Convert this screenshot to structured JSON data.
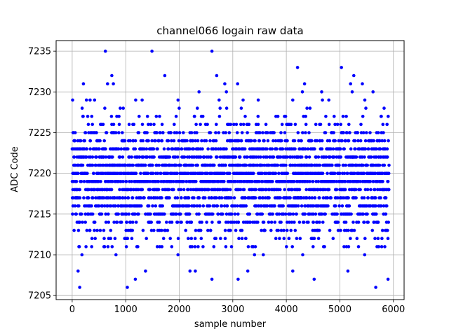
{
  "chart_data": {
    "type": "scatter",
    "title": "channel066 logain raw data",
    "xlabel": "sample number",
    "ylabel": "ADC Code",
    "xlim": [
      -300,
      6200
    ],
    "ylim": [
      7204.5,
      7236.3
    ],
    "x_ticks": [
      0,
      1000,
      2000,
      3000,
      4000,
      5000,
      6000
    ],
    "y_ticks": [
      7205,
      7210,
      7215,
      7220,
      7225,
      7230,
      7235
    ],
    "grid": true,
    "marker_color": "#0000ff",
    "n_samples": 5920,
    "value_range": [
      7206,
      7235
    ],
    "core_band": [
      7210,
      7229
    ],
    "outliers": [
      {
        "x": 140,
        "y": 7206
      },
      {
        "x": 1030,
        "y": 7206
      },
      {
        "x": 5670,
        "y": 7206
      },
      {
        "x": 2610,
        "y": 7207
      },
      {
        "x": 1180,
        "y": 7207
      },
      {
        "x": 3100,
        "y": 7207
      },
      {
        "x": 4520,
        "y": 7207
      },
      {
        "x": 5900,
        "y": 7207
      },
      {
        "x": 110,
        "y": 7208
      },
      {
        "x": 1370,
        "y": 7208
      },
      {
        "x": 2200,
        "y": 7208
      },
      {
        "x": 2300,
        "y": 7208
      },
      {
        "x": 3280,
        "y": 7208
      },
      {
        "x": 4120,
        "y": 7208
      },
      {
        "x": 5150,
        "y": 7208
      },
      {
        "x": 620,
        "y": 7235
      },
      {
        "x": 1490,
        "y": 7235
      },
      {
        "x": 2610,
        "y": 7235
      },
      {
        "x": 4210,
        "y": 7233
      },
      {
        "x": 5030,
        "y": 7233
      },
      {
        "x": 740,
        "y": 7232
      },
      {
        "x": 1730,
        "y": 7232
      },
      {
        "x": 2700,
        "y": 7232
      },
      {
        "x": 5260,
        "y": 7232
      },
      {
        "x": 210,
        "y": 7231
      },
      {
        "x": 660,
        "y": 7231
      },
      {
        "x": 770,
        "y": 7231
      },
      {
        "x": 2850,
        "y": 7231
      },
      {
        "x": 3090,
        "y": 7231
      },
      {
        "x": 4340,
        "y": 7231
      },
      {
        "x": 5200,
        "y": 7231
      },
      {
        "x": 5420,
        "y": 7231
      },
      {
        "x": 2370,
        "y": 7230
      },
      {
        "x": 2880,
        "y": 7230
      },
      {
        "x": 4300,
        "y": 7230
      },
      {
        "x": 4660,
        "y": 7230
      },
      {
        "x": 5230,
        "y": 7230
      },
      {
        "x": 5620,
        "y": 7230
      }
    ]
  }
}
